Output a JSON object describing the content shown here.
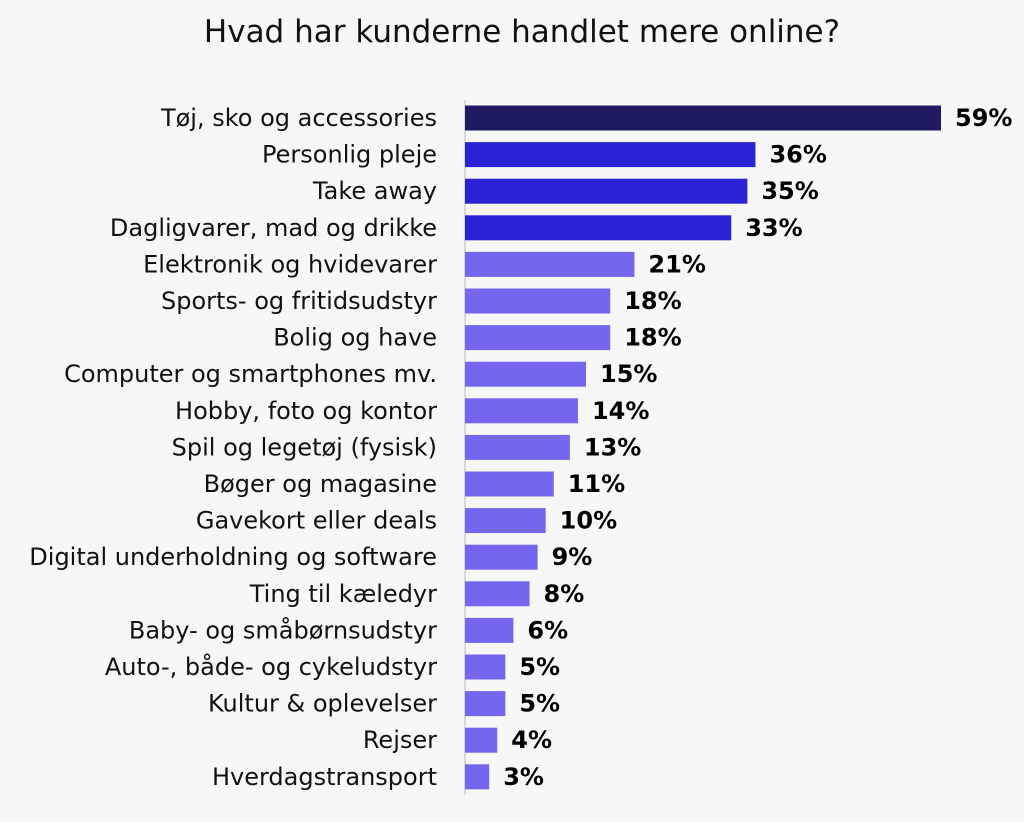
{
  "chart_data": {
    "type": "bar",
    "orientation": "horizontal",
    "title": "Hvad har kunderne handlet mere online?",
    "categories": [
      "Tøj, sko og accessories",
      "Personlig pleje",
      "Take away",
      "Dagligvarer, mad og drikke",
      "Elektronik og hvidevarer",
      "Sports- og fritidsudstyr",
      "Bolig og have",
      "Computer og smartphones mv.",
      "Hobby, foto og kontor",
      "Spil og legetøj (fysisk)",
      "Bøger og magasine",
      "Gavekort eller deals",
      "Digital underholdning og software",
      "Ting til kæledyr",
      "Baby- og småbørnsudstyr",
      "Auto-, både- og cykeludstyr",
      "Kultur & oplevelser",
      "Rejser",
      "Hverdagstransport"
    ],
    "values": [
      59,
      36,
      35,
      33,
      21,
      18,
      18,
      15,
      14,
      13,
      11,
      10,
      9,
      8,
      6,
      5,
      5,
      4,
      3
    ],
    "value_labels": [
      "59%",
      "36%",
      "35%",
      "33%",
      "21%",
      "18%",
      "18%",
      "15%",
      "14%",
      "13%",
      "11%",
      "10%",
      "9%",
      "8%",
      "6%",
      "5%",
      "5%",
      "4%",
      "3%"
    ],
    "unit": "%",
    "xlim": [
      0,
      59
    ],
    "grid": false,
    "legend": "none",
    "colors": {
      "top": "#1e1b63",
      "high": "#2a22d4",
      "rest": "#7466ee",
      "axis": "#cfcfcf",
      "background": "#f7f7f8"
    }
  }
}
